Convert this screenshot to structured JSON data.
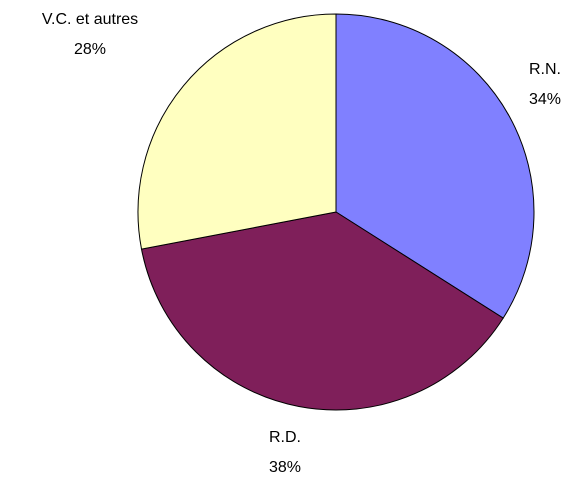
{
  "chart_data": {
    "type": "pie",
    "categories": [
      "R.N.",
      "R.D.",
      "V.C. et autres"
    ],
    "values": [
      34,
      38,
      28
    ],
    "value_labels": [
      "34%",
      "38%",
      "28%"
    ],
    "colors": [
      "#8080ff",
      "#7f1f5a",
      "#ffffc0"
    ]
  }
}
